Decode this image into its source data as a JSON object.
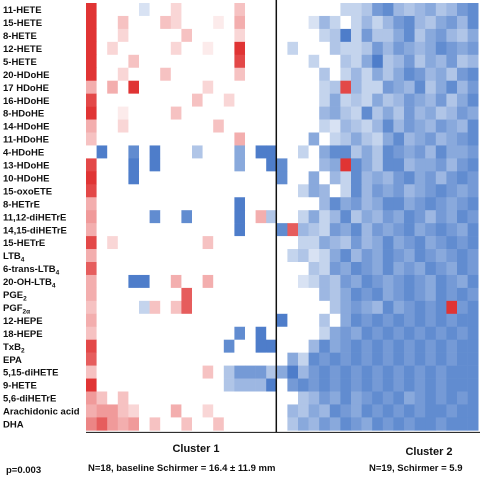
{
  "chart_data": {
    "type": "heatmap",
    "rows": [
      {
        "label": "11-HETE"
      },
      {
        "label": "15-HETE"
      },
      {
        "label": "8-HETE"
      },
      {
        "label": "12-HETE"
      },
      {
        "label": "5-HETE"
      },
      {
        "label": "20-HDoHE"
      },
      {
        "label": "17 HDoHE"
      },
      {
        "label": "16-HDoHE"
      },
      {
        "label": "8-HDoHE"
      },
      {
        "label": "14-HDoHE"
      },
      {
        "label": "11-HDoHE"
      },
      {
        "label": "4-HDoHE"
      },
      {
        "label": "13-HDoHE"
      },
      {
        "label": "10-HDoHE"
      },
      {
        "label": "15-oxoETE"
      },
      {
        "label": "8-HETrE"
      },
      {
        "label": "11,12-diHETrE"
      },
      {
        "label": "14,15-diHETrE"
      },
      {
        "label": "15-HETrE"
      },
      {
        "label": "LTB",
        "sub": "4"
      },
      {
        "label": "6-trans-LTB",
        "sub": "4"
      },
      {
        "label": "20-OH-LTB",
        "sub": "4"
      },
      {
        "label": "PGE",
        "sub": "2"
      },
      {
        "label": "PGF",
        "sub": "2α"
      },
      {
        "label": "12-HEPE"
      },
      {
        "label": "18-HEPE"
      },
      {
        "label": "TxB",
        "sub": "2"
      },
      {
        "label": "EPA"
      },
      {
        "label": "5,15-diHETE"
      },
      {
        "label": "9-HETE"
      },
      {
        "label": "5,6-diHETrE"
      },
      {
        "label": "Arachidonic acid"
      },
      {
        "label": "DHA"
      }
    ],
    "clusters": [
      {
        "name": "Cluster 1",
        "n_columns": 18,
        "caption": "N=18, baseline Schirmer = 16.4 ± 11.9 mm"
      },
      {
        "name": "Cluster 2",
        "n_columns": 19,
        "caption": "N=19, Schirmer = 5.9"
      }
    ],
    "color_scale": {
      "low": "#3a6fc4",
      "mid": "#ffffff",
      "high": "#e03434",
      "range": [
        -1,
        1
      ]
    },
    "values": [
      [
        1,
        0,
        0,
        0,
        0,
        -0.2,
        0,
        0,
        0.2,
        0,
        0,
        0,
        0,
        0,
        0.3,
        0,
        0,
        0,
        0,
        0,
        0,
        0,
        0,
        0,
        -0.3,
        -0.3,
        -0.4,
        -0.7,
        -0.8,
        -0.5,
        -0.4,
        -0.5,
        -0.6,
        -0.4,
        -0.5,
        -0.7,
        -0.8
      ],
      [
        1,
        0,
        0,
        0.3,
        0,
        0,
        0,
        0.3,
        0.2,
        0,
        0,
        0,
        0.1,
        0,
        0.4,
        0,
        0,
        0,
        0,
        0,
        0,
        -0.2,
        -0.5,
        -0.3,
        0,
        -0.3,
        -0.5,
        -0.3,
        -0.5,
        -0.7,
        -0.8,
        -0.5,
        -0.4,
        -0.6,
        -0.7,
        -0.5,
        -0.8
      ],
      [
        1,
        0,
        0,
        0.2,
        0,
        0,
        0,
        0,
        0,
        0.3,
        0,
        0,
        0,
        0,
        0.2,
        0,
        0,
        0,
        0,
        0,
        0,
        0,
        -0.3,
        -0.4,
        -0.9,
        -0.3,
        -0.7,
        -0.4,
        -0.4,
        -0.6,
        -0.8,
        -0.4,
        -0.6,
        -0.7,
        -0.5,
        -0.4,
        -0.6
      ],
      [
        1,
        0,
        0.2,
        0,
        0,
        0,
        0,
        0,
        0.2,
        0,
        0,
        0.1,
        0,
        0,
        1,
        0,
        0,
        0,
        0,
        -0.3,
        0,
        0,
        0,
        -0.4,
        -0.3,
        -0.3,
        -0.4,
        -0.7,
        -0.5,
        -0.7,
        -0.6,
        -0.5,
        -0.6,
        -0.8,
        -0.7,
        -0.6,
        -0.7
      ],
      [
        1,
        0,
        0,
        0,
        0.3,
        0,
        0,
        0,
        0,
        0,
        0,
        0,
        0,
        0,
        0.9,
        0,
        0,
        0,
        0,
        0,
        0,
        -0.3,
        0,
        0,
        -0.4,
        -0.3,
        -0.6,
        -0.9,
        -0.4,
        -0.5,
        -0.7,
        -0.4,
        -0.6,
        -0.5,
        -0.7,
        -0.4,
        -0.5
      ],
      [
        1,
        0,
        0,
        0.2,
        0,
        0,
        0,
        0.3,
        0,
        0,
        0,
        0,
        0,
        0,
        0.3,
        0,
        0,
        0,
        0,
        0,
        0,
        0,
        -0.4,
        0,
        -0.3,
        -0.5,
        -0.3,
        -0.6,
        -0.4,
        -0.6,
        -0.8,
        -0.7,
        -0.5,
        -0.6,
        -0.4,
        -0.7,
        -0.8
      ],
      [
        0.4,
        0,
        0.4,
        0,
        1,
        0,
        0,
        0,
        0,
        0,
        0,
        0.2,
        0,
        0,
        0,
        0,
        0,
        0,
        0,
        0,
        0,
        0,
        -0.3,
        -0.4,
        0.9,
        -0.5,
        -0.3,
        -0.3,
        -0.7,
        -0.6,
        -0.5,
        -0.8,
        -0.4,
        -0.6,
        -0.8,
        -0.5,
        -0.7
      ],
      [
        0.9,
        0,
        0,
        0,
        0,
        0,
        0,
        0,
        0,
        0,
        0.3,
        0,
        0,
        0.2,
        0,
        0,
        0,
        0,
        0,
        0,
        0,
        0,
        -0.3,
        -0.6,
        -0.3,
        -0.4,
        -0.3,
        -0.6,
        -0.4,
        -0.5,
        -0.7,
        -0.6,
        -0.5,
        -0.7,
        -0.4,
        -0.6,
        -0.8
      ],
      [
        1,
        0,
        0,
        0.1,
        0,
        0,
        0,
        0,
        0.3,
        0,
        0,
        0,
        0,
        0,
        0,
        0,
        0,
        0,
        0,
        0,
        0,
        0,
        -0.5,
        -0.6,
        -0.4,
        -0.3,
        -0.8,
        -0.4,
        -0.6,
        -0.4,
        -0.7,
        -0.5,
        -0.6,
        -0.4,
        -0.5,
        -0.7,
        -0.6
      ],
      [
        0.4,
        0,
        0,
        0.2,
        0,
        0,
        0,
        0,
        0,
        0,
        0,
        0,
        0.3,
        0,
        0,
        0,
        0,
        0,
        0,
        0,
        0,
        0,
        -0.3,
        -0.2,
        -0.5,
        -0.4,
        -0.3,
        -0.5,
        -0.8,
        -0.5,
        -0.7,
        -0.6,
        -0.5,
        -0.7,
        -0.6,
        -0.5,
        -0.8
      ],
      [
        0.3,
        0,
        0,
        0,
        0,
        0,
        0,
        0,
        0,
        0,
        0,
        0,
        0,
        0,
        0.4,
        0,
        0,
        0,
        0,
        0,
        0,
        -0.6,
        0,
        -0.3,
        -0.4,
        -0.6,
        -0.4,
        -0.3,
        -0.6,
        -0.8,
        -0.5,
        -0.6,
        -0.7,
        -0.5,
        -0.6,
        -0.7,
        -0.8
      ],
      [
        0,
        -0.9,
        0,
        0,
        -0.8,
        0,
        -0.9,
        0,
        0,
        0,
        -0.4,
        0,
        0,
        0,
        -0.6,
        0,
        -0.9,
        -0.9,
        0,
        0,
        -0.3,
        0,
        -0.6,
        -0.8,
        -0.8,
        -0.4,
        -0.6,
        -0.4,
        -0.8,
        -0.7,
        -0.6,
        -0.7,
        -0.5,
        -0.8,
        -0.6,
        -0.6,
        -0.7
      ],
      [
        0.9,
        0,
        0,
        0,
        -0.9,
        0,
        -0.9,
        0,
        0,
        0,
        0,
        0,
        0,
        0,
        -0.6,
        0,
        0,
        -0.9,
        -0.8,
        0,
        0,
        0,
        -0.5,
        -0.6,
        1,
        -0.8,
        -0.6,
        -0.4,
        -0.8,
        -0.8,
        -0.5,
        -0.6,
        -0.6,
        -0.7,
        -0.5,
        -0.7,
        -0.8
      ],
      [
        1,
        0,
        0,
        0,
        -0.9,
        0,
        0,
        0,
        0,
        0,
        0,
        0,
        0,
        0,
        0,
        0,
        0,
        0,
        -0.8,
        0,
        0,
        -0.6,
        0,
        -0.5,
        -0.3,
        -0.8,
        -0.5,
        -0.6,
        -0.5,
        -0.7,
        -0.8,
        -0.6,
        -0.7,
        -0.5,
        -0.7,
        -0.8,
        -0.7
      ],
      [
        0.9,
        0,
        0,
        0,
        0,
        0,
        0,
        0,
        0,
        0,
        0,
        0,
        0,
        0,
        0,
        0,
        0,
        0,
        0,
        0,
        -0.3,
        -0.6,
        -0.5,
        0,
        -0.3,
        -0.8,
        -0.5,
        -0.7,
        -0.6,
        -0.7,
        -0.5,
        -0.6,
        -0.7,
        -0.8,
        -0.7,
        -0.6,
        -0.7
      ],
      [
        0.4,
        0,
        0,
        0,
        0,
        0,
        0,
        0,
        0,
        0,
        0,
        0,
        0,
        0,
        -0.9,
        0,
        0,
        0,
        0,
        0,
        0,
        0,
        -0.5,
        -0.8,
        -0.6,
        -0.7,
        -0.5,
        -0.6,
        -0.8,
        -0.8,
        -0.6,
        -0.7,
        -0.8,
        -0.7,
        -0.6,
        -0.7,
        -0.8
      ],
      [
        0.5,
        0,
        0,
        0,
        0,
        0,
        -0.8,
        0,
        0,
        -0.8,
        0,
        0,
        0,
        0,
        -0.9,
        0,
        0.4,
        -0.4,
        0,
        0,
        -0.3,
        -0.6,
        -0.3,
        -0.5,
        -0.8,
        -0.4,
        -0.6,
        -0.5,
        -0.7,
        -0.6,
        -0.8,
        -0.7,
        -0.5,
        -0.7,
        -0.6,
        -0.8,
        -0.7
      ],
      [
        0.4,
        0,
        0,
        0,
        0,
        0,
        0,
        0,
        0,
        0,
        0,
        0,
        0,
        0,
        -0.9,
        0,
        0,
        0,
        -0.8,
        0.8,
        -0.5,
        -0.4,
        -0.3,
        -0.7,
        -0.6,
        -0.8,
        -0.5,
        -0.7,
        -0.6,
        -0.7,
        -0.8,
        -0.6,
        -0.7,
        -0.8,
        -0.7,
        -0.6,
        -0.8
      ],
      [
        0.9,
        0,
        0.2,
        0,
        0,
        0,
        0,
        0,
        0,
        0,
        0,
        0.3,
        0,
        0,
        0,
        0,
        0,
        0,
        0,
        0,
        -0.3,
        -0.3,
        -0.6,
        -0.5,
        -0.4,
        -0.7,
        -0.5,
        -0.6,
        -0.8,
        -0.6,
        -0.7,
        -0.8,
        -0.6,
        -0.7,
        -0.8,
        -0.7,
        -0.8
      ],
      [
        0.4,
        0,
        0,
        0,
        0,
        0,
        0,
        0,
        0,
        0,
        0,
        0,
        0,
        0,
        0,
        0,
        0,
        0,
        0,
        -0.3,
        -0.4,
        -0.2,
        -0.3,
        -0.6,
        -0.8,
        -0.5,
        -0.7,
        -0.6,
        -0.8,
        -0.7,
        -0.6,
        -0.8,
        -0.7,
        -0.6,
        -0.7,
        -0.8,
        -0.7
      ],
      [
        0.8,
        0,
        0,
        0,
        0,
        0,
        0,
        0,
        0,
        0,
        0,
        0,
        0,
        0,
        0,
        0,
        0,
        0,
        0,
        0,
        0,
        -0.4,
        -0.3,
        -0.7,
        -0.6,
        -0.8,
        -0.7,
        -0.6,
        -0.8,
        -0.6,
        -0.7,
        -0.6,
        -0.8,
        -0.7,
        -0.6,
        -0.8,
        -0.7
      ],
      [
        0.4,
        0,
        0,
        0,
        -0.9,
        -0.9,
        0,
        0,
        0.4,
        0,
        0,
        0.4,
        0,
        0,
        0,
        0,
        0,
        0,
        0,
        0,
        -0.2,
        -0.3,
        -0.5,
        -0.4,
        -0.7,
        -0.6,
        -0.8,
        -0.7,
        -0.6,
        -0.7,
        -0.8,
        -0.7,
        -0.6,
        -0.8,
        -0.7,
        -0.6,
        -0.8
      ],
      [
        0.4,
        0,
        0,
        0,
        0,
        0,
        0,
        0,
        0,
        0.8,
        0,
        0,
        0,
        0,
        0,
        0,
        0,
        0,
        0,
        0,
        0,
        0,
        -0.5,
        -0.4,
        -0.6,
        -0.8,
        -0.7,
        -0.8,
        -0.6,
        -0.7,
        -0.8,
        -0.7,
        -0.6,
        -0.8,
        -0.7,
        -0.8,
        -0.7
      ],
      [
        0.3,
        0,
        0,
        0,
        0,
        -0.3,
        0.3,
        0,
        0.3,
        0.8,
        0,
        0,
        0,
        0,
        0,
        0,
        0,
        0,
        0,
        0,
        0,
        0,
        0,
        -0.4,
        -0.6,
        -0.7,
        -0.6,
        -0.5,
        -0.8,
        -0.6,
        -0.7,
        -0.8,
        -0.7,
        -0.8,
        1,
        -0.7,
        -0.8
      ],
      [
        0.4,
        0,
        0,
        0,
        0,
        0,
        0,
        0,
        0,
        0,
        0,
        0,
        0,
        0,
        0,
        0,
        0,
        0,
        -0.9,
        0,
        0,
        0,
        -0.4,
        0,
        -0.6,
        -0.8,
        -0.7,
        -0.8,
        -0.7,
        -0.8,
        -0.7,
        -0.8,
        -0.7,
        -0.8,
        -0.7,
        -0.8,
        -0.8
      ],
      [
        0.3,
        0,
        0,
        0,
        0,
        0,
        0,
        0,
        0,
        0,
        0,
        0,
        0,
        0,
        -0.8,
        0,
        -0.9,
        0,
        0,
        0,
        0,
        0,
        -0.3,
        -0.6,
        -0.7,
        -0.6,
        -0.8,
        -0.7,
        -0.8,
        -0.7,
        -0.8,
        -0.7,
        -0.8,
        -0.7,
        -0.8,
        -0.7,
        -0.8
      ],
      [
        0.9,
        0,
        0,
        0,
        0,
        0,
        0,
        0,
        0,
        0,
        0,
        0,
        0,
        -0.8,
        0,
        0,
        -0.9,
        -0.9,
        0,
        0,
        0,
        -0.5,
        -0.8,
        -0.6,
        -0.7,
        -0.8,
        -0.7,
        -0.8,
        -0.7,
        -0.8,
        -0.7,
        -0.8,
        -0.7,
        -0.8,
        -0.7,
        -0.8,
        -0.8
      ],
      [
        0.8,
        0,
        0,
        0,
        0,
        0,
        0,
        0,
        0,
        0,
        0,
        0,
        0,
        0,
        0,
        0,
        0,
        0,
        0,
        -0.6,
        -0.3,
        -0.8,
        -0.7,
        -0.8,
        -0.7,
        -0.8,
        -0.7,
        -0.8,
        -0.7,
        -0.8,
        -0.7,
        -0.8,
        -0.7,
        -0.8,
        -0.7,
        -0.8,
        -0.8
      ],
      [
        0.3,
        0,
        0,
        0,
        0,
        0,
        0,
        0,
        0,
        0,
        0,
        0.3,
        0,
        -0.4,
        -0.7,
        -0.7,
        -0.7,
        -0.4,
        -0.6,
        -0.9,
        -0.5,
        -0.7,
        -0.8,
        -0.7,
        -0.8,
        -0.7,
        -0.8,
        -0.7,
        -0.8,
        -0.7,
        -0.8,
        -0.7,
        -0.8,
        -0.7,
        -0.8,
        -0.8,
        -0.8
      ],
      [
        1,
        0,
        0,
        0,
        0,
        0,
        0,
        0,
        0,
        0,
        0,
        0,
        0,
        -0.4,
        -0.5,
        -0.5,
        -0.5,
        -0.9,
        0,
        -0.7,
        -0.8,
        -0.7,
        -0.8,
        -0.7,
        -0.8,
        -0.7,
        -0.8,
        -0.7,
        -0.8,
        -0.7,
        -0.8,
        -0.7,
        -0.8,
        -0.7,
        -0.8,
        -0.8,
        -0.8
      ],
      [
        0.5,
        0.3,
        0,
        0.3,
        0,
        0,
        0,
        0,
        0,
        0,
        0,
        0,
        0,
        0,
        0,
        0,
        0,
        0,
        0,
        0,
        -0.4,
        -0.5,
        -0.7,
        -0.6,
        -0.8,
        -0.6,
        -0.7,
        -0.8,
        -0.7,
        -0.8,
        -0.6,
        -0.7,
        -0.8,
        -0.7,
        -0.8,
        -0.7,
        -0.8
      ],
      [
        0.4,
        0.5,
        0.5,
        0.3,
        0.2,
        0,
        0,
        0,
        0.4,
        0,
        0,
        0.2,
        0,
        0,
        0,
        0,
        0,
        0,
        0,
        -0.5,
        -0.4,
        -0.6,
        -0.5,
        -0.8,
        -0.7,
        -0.6,
        -0.8,
        -0.7,
        -0.8,
        -0.7,
        -0.8,
        -0.7,
        -0.8,
        -0.8,
        -0.7,
        -0.8,
        -0.8
      ],
      [
        0.6,
        0.8,
        0.5,
        0.4,
        0.5,
        0,
        0.3,
        0,
        0,
        0.3,
        0,
        0,
        0.3,
        0,
        0,
        0,
        0,
        0,
        0,
        -0.4,
        -0.6,
        -0.5,
        -0.7,
        -0.6,
        -0.8,
        -0.7,
        -0.6,
        -0.8,
        -0.7,
        -0.8,
        -0.7,
        -0.8,
        -0.8,
        -0.7,
        -0.8,
        -0.8,
        -0.8
      ]
    ]
  },
  "footer": {
    "p_value": "p=0.003"
  }
}
